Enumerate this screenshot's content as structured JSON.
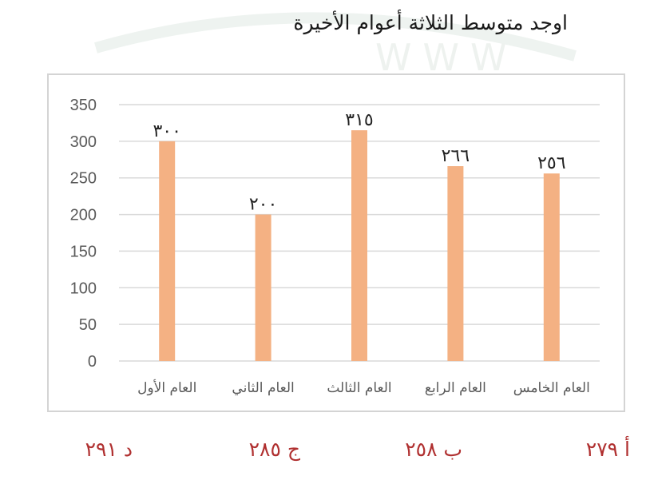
{
  "question": "اوجد متوسط الثلاثة أعوام الأخيرة",
  "colors": {
    "bar": "#f4b183",
    "grid": "#d9d9d9",
    "tick_text": "#595959",
    "answer": "#b03030"
  },
  "chart_data": {
    "type": "bar",
    "categories": [
      "العام الأول",
      "العام الثاني",
      "العام الثالث",
      "العام الرابع",
      "العام الخامس"
    ],
    "values": [
      300,
      200,
      315,
      266,
      256
    ],
    "data_labels": [
      "٣٠٠",
      "٢٠٠",
      "٣١٥",
      "٢٦٦",
      "٢٥٦"
    ],
    "yticks": [
      0,
      50,
      100,
      150,
      200,
      250,
      300,
      350
    ],
    "ylim": [
      0,
      350
    ],
    "grid": true,
    "title": "",
    "xlabel": "",
    "ylabel": ""
  },
  "answers": [
    {
      "label": "أ ٢٧٩"
    },
    {
      "label": "ب ٢٥٨"
    },
    {
      "label": "ج ٢٨٥"
    },
    {
      "label": "د ٢٩١"
    }
  ]
}
